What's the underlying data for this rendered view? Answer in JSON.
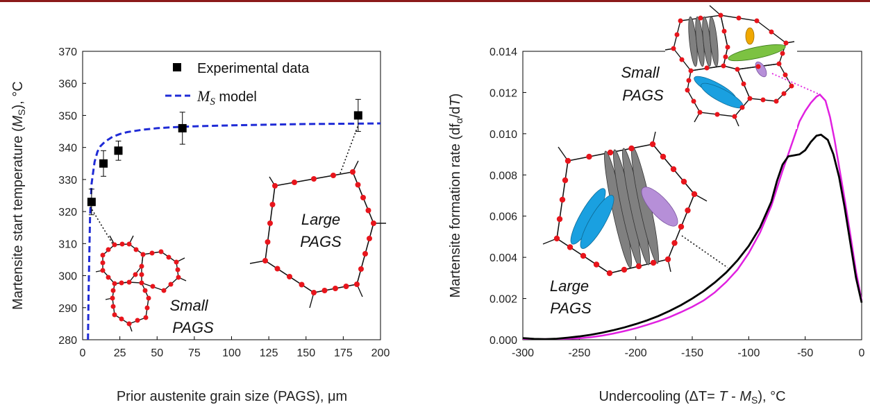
{
  "chart_data": [
    {
      "type": "scatter",
      "title": "",
      "xlabel": "Prior austenite grain size (PAGS), μm",
      "ylabel": "Martensite start temperature (M_S), °C",
      "ylabel_parts": {
        "pre": "Martensite start temperature (",
        "var": "M",
        "sub": "S",
        "post": "), °C"
      },
      "xlim": [
        0,
        200
      ],
      "ylim": [
        280,
        370
      ],
      "xticks": [
        0,
        25,
        50,
        75,
        100,
        125,
        150,
        175,
        200
      ],
      "yticks": [
        280,
        290,
        300,
        310,
        320,
        330,
        340,
        350,
        360,
        370
      ],
      "legend_position": "top-center",
      "series": [
        {
          "name": "Experimental data",
          "kind": "points-with-errorbars",
          "color": "#000000",
          "points": [
            {
              "x": 6,
              "y": 323,
              "err": 4
            },
            {
              "x": 14,
              "y": 335,
              "err": 4
            },
            {
              "x": 24,
              "y": 339,
              "err": 3
            },
            {
              "x": 67,
              "y": 346,
              "err": 5
            },
            {
              "x": 185,
              "y": 350,
              "err": 5
            }
          ]
        },
        {
          "name": "M_S model",
          "name_parts": {
            "var": "M",
            "sub": "S",
            "post": " model"
          },
          "kind": "dashed-line",
          "color": "#1f2bd6",
          "x": [
            3.6,
            4,
            5,
            6,
            8,
            10,
            12,
            15,
            20,
            25,
            30,
            40,
            50,
            60,
            75,
            100,
            125,
            150,
            175,
            200
          ],
          "y": [
            280,
            294.7,
            318.5,
            328.7,
            335.5,
            338.7,
            340.4,
            341.8,
            343.3,
            344.2,
            344.8,
            345.5,
            346,
            346.3,
            346.6,
            346.9,
            347.1,
            347.3,
            347.4,
            347.5
          ]
        }
      ],
      "annotations": [
        {
          "text_lines": [
            "Large",
            "PAGS"
          ]
        },
        {
          "text_lines": [
            "Small",
            "PAGS"
          ]
        }
      ]
    },
    {
      "type": "line",
      "title": "",
      "xlabel": "Undercooling (ΔT= T - M_S), °C",
      "xlabel_parts": {
        "pre": "Undercooling (ΔT= ",
        "var1": "T",
        "mid": " - ",
        "var2": "M",
        "sub": "S",
        "post": "), °C"
      },
      "ylabel": "Martensite formation rate (df_α/dT)",
      "ylabel_parts": {
        "pre": "Martensite formation rate (df",
        "sub": "α",
        "mid": "/d",
        "var": "T",
        "post": ")"
      },
      "xlim": [
        -300,
        0
      ],
      "ylim": [
        0,
        0.014
      ],
      "xticks": [
        -300,
        -250,
        -200,
        -150,
        -100,
        -50,
        0
      ],
      "yticks": [
        "0.000",
        "0.002",
        "0.004",
        "0.006",
        "0.008",
        "0.010",
        "0.012",
        "0.014"
      ],
      "series": [
        {
          "label": "Large PAGS",
          "color": "#000000",
          "x": [
            -300,
            -290,
            -280,
            -270,
            -260,
            -250,
            -240,
            -230,
            -220,
            -210,
            -200,
            -190,
            -180,
            -170,
            -160,
            -150,
            -140,
            -130,
            -120,
            -110,
            -100,
            -90,
            -80,
            -75,
            -70,
            -65,
            -60,
            -55,
            -50,
            -45,
            -40,
            -36,
            -30,
            -25,
            -20,
            -15,
            -10,
            -5,
            0
          ],
          "y": [
            8e-05,
            4e-05,
            3e-05,
            5e-05,
            0.0001,
            0.00016,
            0.00024,
            0.00034,
            0.00046,
            0.0006,
            0.00076,
            0.00094,
            0.00115,
            0.0014,
            0.00168,
            0.002,
            0.00236,
            0.00278,
            0.00326,
            0.00385,
            0.00455,
            0.00545,
            0.0067,
            0.0077,
            0.0085,
            0.0089,
            0.00895,
            0.009,
            0.0092,
            0.0096,
            0.0099,
            0.00995,
            0.0097,
            0.009,
            0.0079,
            0.0064,
            0.0047,
            0.003,
            0.0018
          ]
        },
        {
          "label": "Small PAGS",
          "color": "#e020e0",
          "x": [
            -300,
            -280,
            -260,
            -250,
            -240,
            -230,
            -220,
            -210,
            -200,
            -190,
            -180,
            -170,
            -160,
            -150,
            -140,
            -130,
            -120,
            -110,
            -100,
            -90,
            -80,
            -70,
            -60,
            -55,
            -50,
            -45,
            -40,
            -37,
            -32,
            -28,
            -24,
            -20,
            -15,
            -10,
            -5,
            0
          ],
          "y": [
            2e-05,
            3e-05,
            5e-05,
            7e-05,
            0.00012,
            0.0002,
            0.0003,
            0.00042,
            0.00056,
            0.00072,
            0.0009,
            0.0011,
            0.00134,
            0.0016,
            0.0019,
            0.0023,
            0.0028,
            0.0034,
            0.0042,
            0.0052,
            0.0065,
            0.0082,
            0.0098,
            0.0106,
            0.0111,
            0.0115,
            0.0118,
            0.0119,
            0.0116,
            0.0108,
            0.0097,
            0.0084,
            0.0068,
            0.0051,
            0.0033,
            0.0019
          ]
        }
      ],
      "annotations": [
        {
          "text_lines": [
            "Small",
            "PAGS"
          ]
        },
        {
          "text_lines": [
            "Large",
            "PAGS"
          ]
        }
      ]
    }
  ]
}
